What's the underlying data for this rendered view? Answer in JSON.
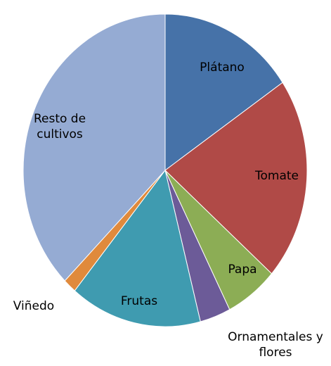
{
  "chart_data": {
    "type": "pie",
    "categories": [
      "Plátano",
      "Tomate",
      "Papa",
      "Ornamentales y flores",
      "Frutas",
      "Viñedo",
      "Resto de cultivos"
    ],
    "values": [
      15.5,
      21,
      6,
      3.5,
      15,
      1.5,
      37.5
    ],
    "colors": [
      "#4672a8",
      "#b04a47",
      "#8cad55",
      "#6c5b98",
      "#3f9bb0",
      "#e08a3c",
      "#95abd3"
    ]
  }
}
